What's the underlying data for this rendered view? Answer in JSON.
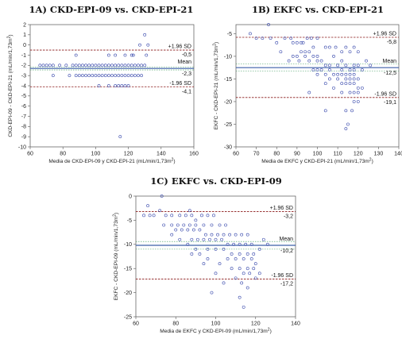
{
  "chart_data": [
    {
      "type": "scatter",
      "title": "1A) CKD-EPI-09 vs. CKD-EPI-21",
      "xlabel": "Media de CKD-EPI-09 y CKD-EPI-21 (mL/min/1,73m²)",
      "ylabel": "CKD-EPI-09 - CKD-EPI-21 (mL/min/1,73m²)",
      "xlim": [
        60,
        160
      ],
      "ylim": [
        -10,
        2
      ],
      "xticks": [
        60,
        80,
        100,
        120,
        140,
        160
      ],
      "yticks": [
        -10,
        -9,
        -8,
        -7,
        -6,
        -5,
        -4,
        -3,
        -2,
        -1,
        0,
        1,
        2
      ],
      "ytick_labels": [
        "-10",
        "-9",
        "-8",
        "-7",
        "-6",
        "-5",
        "-4",
        "-3",
        "-2",
        "-1",
        "0",
        "1",
        "2"
      ],
      "mean": -2.3,
      "upper_loa": -0.5,
      "lower_loa": -4.1,
      "mean_ci": [
        -2.15,
        -2.45
      ],
      "labels": {
        "upper_name": "+1.96 SD",
        "upper_value": "-0,5",
        "mean_name": "Mean",
        "mean_value": "-2,3",
        "lower_name": "-1.96 SD",
        "lower_value": "-4,1"
      },
      "points": [
        [
          130,
          1
        ],
        [
          132,
          0
        ],
        [
          127,
          0
        ],
        [
          123,
          -1
        ],
        [
          131,
          -1
        ],
        [
          88,
          -1
        ],
        [
          108,
          -1
        ],
        [
          112,
          -1
        ],
        [
          118,
          -1
        ],
        [
          122,
          -1
        ],
        [
          66,
          -2
        ],
        [
          68,
          -2
        ],
        [
          70,
          -2
        ],
        [
          72,
          -2
        ],
        [
          74,
          -2
        ],
        [
          78,
          -2
        ],
        [
          82,
          -2
        ],
        [
          86,
          -2
        ],
        [
          88,
          -2
        ],
        [
          90,
          -2
        ],
        [
          92,
          -2
        ],
        [
          94,
          -2
        ],
        [
          96,
          -2
        ],
        [
          98,
          -2
        ],
        [
          100,
          -2
        ],
        [
          102,
          -2
        ],
        [
          104,
          -2
        ],
        [
          106,
          -2
        ],
        [
          108,
          -2
        ],
        [
          110,
          -2
        ],
        [
          112,
          -2
        ],
        [
          114,
          -2
        ],
        [
          116,
          -2
        ],
        [
          118,
          -2
        ],
        [
          120,
          -2
        ],
        [
          122,
          -2
        ],
        [
          124,
          -2
        ],
        [
          126,
          -2
        ],
        [
          128,
          -2
        ],
        [
          130,
          -2
        ],
        [
          74,
          -3
        ],
        [
          84,
          -3
        ],
        [
          88,
          -3
        ],
        [
          90,
          -3
        ],
        [
          92,
          -3
        ],
        [
          94,
          -3
        ],
        [
          96,
          -3
        ],
        [
          98,
          -3
        ],
        [
          100,
          -3
        ],
        [
          102,
          -3
        ],
        [
          104,
          -3
        ],
        [
          106,
          -3
        ],
        [
          108,
          -3
        ],
        [
          110,
          -3
        ],
        [
          112,
          -3
        ],
        [
          114,
          -3
        ],
        [
          116,
          -3
        ],
        [
          118,
          -3
        ],
        [
          120,
          -3
        ],
        [
          122,
          -3
        ],
        [
          124,
          -3
        ],
        [
          126,
          -3
        ],
        [
          128,
          -3
        ],
        [
          102,
          -4
        ],
        [
          108,
          -4
        ],
        [
          112,
          -4
        ],
        [
          114,
          -4
        ],
        [
          116,
          -4
        ],
        [
          118,
          -4
        ],
        [
          120,
          -4
        ],
        [
          115,
          -9
        ]
      ]
    },
    {
      "type": "scatter",
      "title": "1B) EKFC vs. CKD-EPI-21",
      "xlabel": "Media de EKFC y CKD-EPI-21 (mL/min/1,73m²)",
      "ylabel": "EKFC - CKD-EPI-21 (mL/min/1,73m²)",
      "xlim": [
        60,
        140
      ],
      "ylim": [
        -30,
        -3
      ],
      "xticks": [
        60,
        70,
        80,
        90,
        100,
        110,
        120,
        130,
        140
      ],
      "yticks": [
        -30,
        -25,
        -20,
        -15,
        -10,
        -5
      ],
      "ytick_labels": [
        "-30",
        "-25",
        "-20",
        "-15",
        "-10",
        "-5"
      ],
      "mean": -12.5,
      "upper_loa": -5.8,
      "lower_loa": -19.1,
      "mean_ci": [
        -11.7,
        -13.3
      ],
      "labels": {
        "upper_name": "+1.96 SD",
        "upper_value": "-5,8",
        "mean_name": "Mean",
        "mean_value": "-12,5",
        "lower_name": "-1.96 SD",
        "lower_value": "-19,1"
      },
      "points": [
        [
          76,
          -3
        ],
        [
          67,
          -5
        ],
        [
          70,
          -6
        ],
        [
          73,
          -6
        ],
        [
          77,
          -6
        ],
        [
          80,
          -7
        ],
        [
          84,
          -6
        ],
        [
          87,
          -6
        ],
        [
          88,
          -7
        ],
        [
          90,
          -7
        ],
        [
          92,
          -7
        ],
        [
          93,
          -7
        ],
        [
          95,
          -6
        ],
        [
          97,
          -6
        ],
        [
          100,
          -6
        ],
        [
          98,
          -8
        ],
        [
          96,
          -9
        ],
        [
          94,
          -9
        ],
        [
          92,
          -9
        ],
        [
          90,
          -10
        ],
        [
          94,
          -10
        ],
        [
          98,
          -10
        ],
        [
          100,
          -10
        ],
        [
          104,
          -8
        ],
        [
          106,
          -8
        ],
        [
          109,
          -8
        ],
        [
          112,
          -9
        ],
        [
          114,
          -8
        ],
        [
          116,
          -9
        ],
        [
          118,
          -8
        ],
        [
          120,
          -9
        ],
        [
          108,
          -10
        ],
        [
          96,
          -11
        ],
        [
          100,
          -11
        ],
        [
          102,
          -11
        ],
        [
          104,
          -12
        ],
        [
          106,
          -12
        ],
        [
          110,
          -12
        ],
        [
          114,
          -12
        ],
        [
          118,
          -12
        ],
        [
          120,
          -12
        ],
        [
          98,
          -13
        ],
        [
          100,
          -13
        ],
        [
          102,
          -13
        ],
        [
          106,
          -13
        ],
        [
          112,
          -13
        ],
        [
          116,
          -13
        ],
        [
          118,
          -13
        ],
        [
          122,
          -13
        ],
        [
          100,
          -14
        ],
        [
          104,
          -14
        ],
        [
          108,
          -14
        ],
        [
          110,
          -14
        ],
        [
          112,
          -14
        ],
        [
          114,
          -14
        ],
        [
          116,
          -14
        ],
        [
          118,
          -14
        ],
        [
          106,
          -15
        ],
        [
          110,
          -15
        ],
        [
          114,
          -15
        ],
        [
          116,
          -15
        ],
        [
          118,
          -15
        ],
        [
          120,
          -15
        ],
        [
          112,
          -16
        ],
        [
          114,
          -16
        ],
        [
          116,
          -16
        ],
        [
          118,
          -16
        ],
        [
          120,
          -17
        ],
        [
          112,
          -18
        ],
        [
          116,
          -18
        ],
        [
          118,
          -18
        ],
        [
          120,
          -18
        ],
        [
          118,
          -20
        ],
        [
          120,
          -20
        ],
        [
          114,
          -22
        ],
        [
          117,
          -22
        ],
        [
          104,
          -22
        ],
        [
          115,
          -25
        ],
        [
          114,
          -26
        ],
        [
          96,
          -18
        ],
        [
          91,
          -11
        ],
        [
          88,
          -10
        ],
        [
          86,
          -11
        ],
        [
          82,
          -9
        ],
        [
          112,
          -11
        ],
        [
          126,
          -12
        ],
        [
          124,
          -11
        ],
        [
          122,
          -17
        ],
        [
          108,
          -17
        ],
        [
          104,
          -16
        ]
      ]
    },
    {
      "type": "scatter",
      "title": "1C) EKFC vs. CKD-EPI-09",
      "xlabel": "Media de EKFC y CKD-EPI-09 (mL/min/1,73m²)",
      "ylabel": "EKFC - CKD-EPI-09 (mL/min/1,73m²)",
      "xlim": [
        60,
        140
      ],
      "ylim": [
        -25,
        0
      ],
      "xticks": [
        60,
        80,
        100,
        120,
        140
      ],
      "yticks": [
        -25,
        -20,
        -15,
        -10,
        -5,
        0
      ],
      "ytick_labels": [
        "-25",
        "-20",
        "-15",
        "-10",
        "-5",
        "0"
      ],
      "mean": -10.2,
      "upper_loa": -3.2,
      "lower_loa": -17.2,
      "mean_ci": [
        -9.4,
        -11.0
      ],
      "labels": {
        "upper_name": "+1.96 SD",
        "upper_value": "-3,2",
        "mean_name": "Mean",
        "mean_value": "-10,2",
        "lower_name": "-1.96 SD",
        "lower_value": "-17,2"
      },
      "points": [
        [
          73,
          0
        ],
        [
          66,
          -2
        ],
        [
          64,
          -4
        ],
        [
          67,
          -4
        ],
        [
          69,
          -4
        ],
        [
          72,
          -3
        ],
        [
          75,
          -4
        ],
        [
          78,
          -4
        ],
        [
          82,
          -4
        ],
        [
          85,
          -4
        ],
        [
          87,
          -3
        ],
        [
          88,
          -4
        ],
        [
          90,
          -5
        ],
        [
          93,
          -4
        ],
        [
          96,
          -4
        ],
        [
          99,
          -4
        ],
        [
          74,
          -6
        ],
        [
          78,
          -6
        ],
        [
          81,
          -6
        ],
        [
          84,
          -6
        ],
        [
          87,
          -6
        ],
        [
          90,
          -6
        ],
        [
          94,
          -6
        ],
        [
          98,
          -6
        ],
        [
          102,
          -6
        ],
        [
          105,
          -6
        ],
        [
          80,
          -7
        ],
        [
          83,
          -7
        ],
        [
          86,
          -7
        ],
        [
          89,
          -7
        ],
        [
          92,
          -7
        ],
        [
          95,
          -8
        ],
        [
          98,
          -8
        ],
        [
          101,
          -8
        ],
        [
          104,
          -8
        ],
        [
          107,
          -8
        ],
        [
          110,
          -8
        ],
        [
          113,
          -8
        ],
        [
          116,
          -8
        ],
        [
          88,
          -9
        ],
        [
          91,
          -9
        ],
        [
          94,
          -9
        ],
        [
          97,
          -9
        ],
        [
          100,
          -9
        ],
        [
          103,
          -9
        ],
        [
          106,
          -10
        ],
        [
          109,
          -10
        ],
        [
          112,
          -10
        ],
        [
          115,
          -10
        ],
        [
          118,
          -10
        ],
        [
          90,
          -11
        ],
        [
          96,
          -11
        ],
        [
          100,
          -11
        ],
        [
          104,
          -11
        ],
        [
          108,
          -12
        ],
        [
          112,
          -12
        ],
        [
          116,
          -12
        ],
        [
          119,
          -12
        ],
        [
          122,
          -11
        ],
        [
          106,
          -13
        ],
        [
          110,
          -13
        ],
        [
          114,
          -13
        ],
        [
          118,
          -13
        ],
        [
          120,
          -14
        ],
        [
          102,
          -14
        ],
        [
          108,
          -15
        ],
        [
          112,
          -15
        ],
        [
          116,
          -15
        ],
        [
          119,
          -15
        ],
        [
          114,
          -16
        ],
        [
          117,
          -16
        ],
        [
          120,
          -17
        ],
        [
          110,
          -17
        ],
        [
          104,
          -18
        ],
        [
          113,
          -18
        ],
        [
          116,
          -19
        ],
        [
          98,
          -20
        ],
        [
          112,
          -21
        ],
        [
          114,
          -23
        ],
        [
          94,
          -14
        ],
        [
          86,
          -10
        ],
        [
          82,
          -9
        ],
        [
          78,
          -8
        ],
        [
          124,
          -9
        ],
        [
          126,
          -10
        ],
        [
          122,
          -16
        ],
        [
          100,
          -16
        ],
        [
          92,
          -12
        ],
        [
          96,
          -13
        ],
        [
          88,
          -12
        ]
      ]
    }
  ]
}
